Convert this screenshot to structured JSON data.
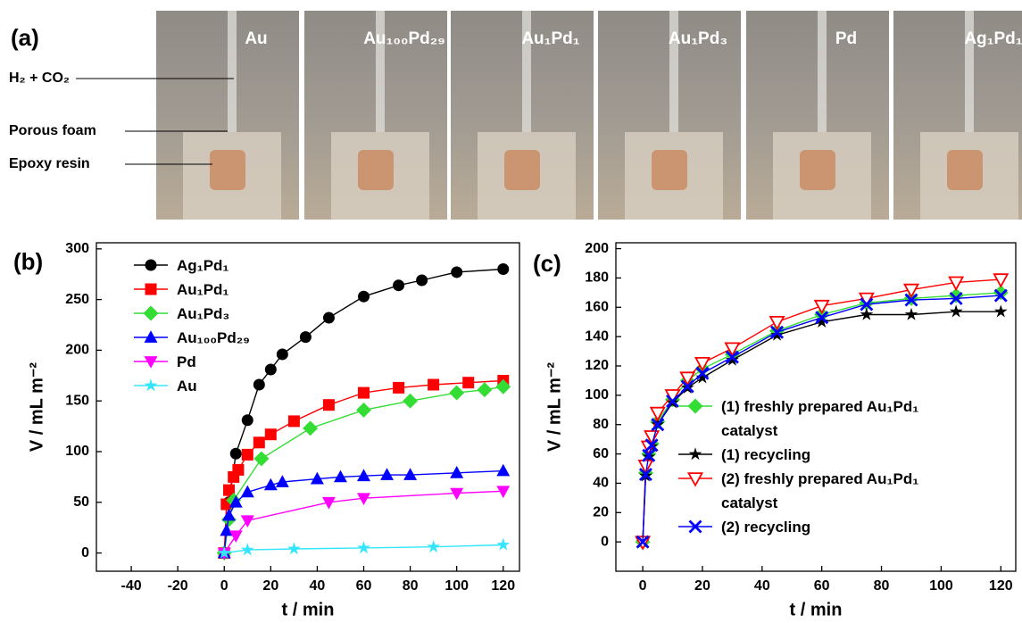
{
  "panel_a": {
    "label": "(a)",
    "photos": [
      "Au",
      "Au₁₀₀Pd₂₉",
      "Au₁Pd₁",
      "Au₁Pd₃",
      "Pd",
      "Ag₁Pd₁"
    ],
    "annotations": [
      "H₂ + CO₂",
      "Porous foam",
      "Epoxy resin"
    ]
  },
  "chart_data": [
    {
      "type": "line",
      "label": "(b)",
      "x_label": "t / min",
      "y_label": "V / mL m⁻²",
      "xlim": [
        -55,
        127
      ],
      "xticks": [
        -40,
        -20,
        0,
        20,
        40,
        60,
        80,
        100,
        120
      ],
      "ylim": [
        -18,
        306
      ],
      "yticks": [
        0,
        50,
        100,
        150,
        200,
        250,
        300
      ],
      "legend": "upper left",
      "series": [
        {
          "name": "Ag₁Pd₁",
          "color": "#000000",
          "marker": "circle",
          "x": [
            0,
            2,
            5,
            10,
            15,
            20,
            25,
            35,
            45,
            60,
            75,
            85,
            100,
            120
          ],
          "values": [
            0,
            50,
            98,
            131,
            166,
            181,
            196,
            213,
            232,
            253,
            264,
            269,
            277,
            280
          ]
        },
        {
          "name": "Au₁Pd₁",
          "color": "#ff0000",
          "marker": "square",
          "x": [
            0,
            1,
            2,
            4,
            6,
            10,
            15,
            20,
            30,
            45,
            60,
            75,
            90,
            105,
            120
          ],
          "values": [
            0,
            48,
            62,
            75,
            82,
            97,
            109,
            117,
            130,
            146,
            158,
            163,
            166,
            168,
            170
          ]
        },
        {
          "name": "Au₁Pd₃",
          "color": "#33dd33",
          "marker": "diamond",
          "x": [
            0,
            2,
            4,
            16,
            37,
            60,
            80,
            100,
            112,
            120
          ],
          "values": [
            0,
            33,
            52,
            93,
            123,
            141,
            150,
            158,
            161,
            164
          ]
        },
        {
          "name": "Au₁₀₀Pd₂₉",
          "color": "#0000ff",
          "marker": "triangle",
          "x": [
            0,
            1,
            2,
            5,
            10,
            20,
            25,
            40,
            50,
            60,
            70,
            80,
            100,
            120
          ],
          "values": [
            0,
            22,
            37,
            50,
            60,
            67,
            70,
            73,
            75,
            76,
            77,
            77,
            79,
            81
          ]
        },
        {
          "name": "Pd",
          "color": "#ff00ff",
          "marker": "triangle-down",
          "x": [
            0,
            5,
            10,
            45,
            60,
            100,
            120
          ],
          "values": [
            0,
            17,
            32,
            50,
            54,
            59,
            61
          ]
        },
        {
          "name": "Au",
          "color": "#33e5ff",
          "marker": "star",
          "x": [
            0,
            10,
            30,
            60,
            90,
            120
          ],
          "values": [
            0,
            3,
            4,
            5,
            6,
            8
          ]
        }
      ]
    },
    {
      "type": "line",
      "label": "(c)",
      "x_label": "t / min",
      "y_label": "V / mL m⁻²",
      "xlim": [
        -9,
        125
      ],
      "xticks": [
        0,
        20,
        40,
        60,
        80,
        100,
        120
      ],
      "ylim": [
        -20,
        204
      ],
      "yticks": [
        0,
        20,
        40,
        60,
        80,
        100,
        120,
        140,
        160,
        180,
        200
      ],
      "legend": "center right",
      "x": [
        0,
        1,
        2,
        3,
        5,
        10,
        15,
        20,
        30,
        45,
        60,
        75,
        90,
        105,
        120
      ],
      "series": [
        {
          "name": "(1) freshly prepared Au₁Pd₁ catalyst",
          "color": "#33dd33",
          "marker": "diamond",
          "values": [
            0,
            47,
            60,
            67,
            82,
            97,
            110,
            118,
            128,
            144,
            155,
            163,
            166,
            168,
            170
          ]
        },
        {
          "name": "(1) recycling",
          "color": "#000000",
          "marker": "star",
          "values": [
            0,
            45,
            58,
            65,
            80,
            95,
            105,
            112,
            124,
            141,
            150,
            155,
            155,
            157,
            157
          ]
        },
        {
          "name": "(2) freshly prepared Au₁Pd₁ catalyst",
          "color": "#ff0000",
          "marker": "triangle-down-open",
          "values": [
            0,
            52,
            65,
            72,
            88,
            100,
            112,
            122,
            132,
            150,
            161,
            166,
            172,
            177,
            179
          ]
        },
        {
          "name": "(2) recycling",
          "color": "#0000ff",
          "marker": "x",
          "values": [
            0,
            46,
            59,
            66,
            80,
            96,
            106,
            115,
            126,
            143,
            153,
            162,
            165,
            166,
            168
          ]
        }
      ]
    }
  ]
}
